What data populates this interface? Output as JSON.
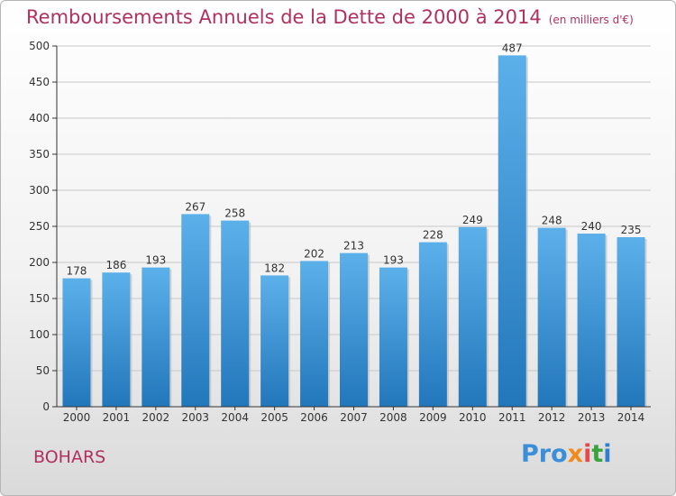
{
  "title": "Remboursements Annuels de la Dette de 2000 à 2014",
  "subtitle": "(en milliers d'€)",
  "place": "BOHARS",
  "logo": {
    "text": "Proxiti",
    "parts": [
      "Pro",
      "x",
      "i",
      "t",
      "i"
    ]
  },
  "colors": {
    "title": "#b03060",
    "bar_light": "#5cb0ea",
    "bar_dark": "#2277bb",
    "grid": "#c8c8c8",
    "axis": "#333333"
  },
  "chart_data": {
    "type": "bar",
    "title": "Remboursements Annuels de la Dette de 2000 à 2014",
    "xlabel": "",
    "ylabel": "",
    "ylim": [
      0,
      500
    ],
    "yticks": [
      0,
      50,
      100,
      150,
      200,
      250,
      300,
      350,
      400,
      450,
      500
    ],
    "categories": [
      "2000",
      "2001",
      "2002",
      "2003",
      "2004",
      "2005",
      "2006",
      "2007",
      "2008",
      "2009",
      "2010",
      "2011",
      "2012",
      "2013",
      "2014"
    ],
    "values": [
      178,
      186,
      193,
      267,
      258,
      182,
      202,
      213,
      193,
      228,
      249,
      487,
      248,
      240,
      235
    ],
    "grid": true
  }
}
